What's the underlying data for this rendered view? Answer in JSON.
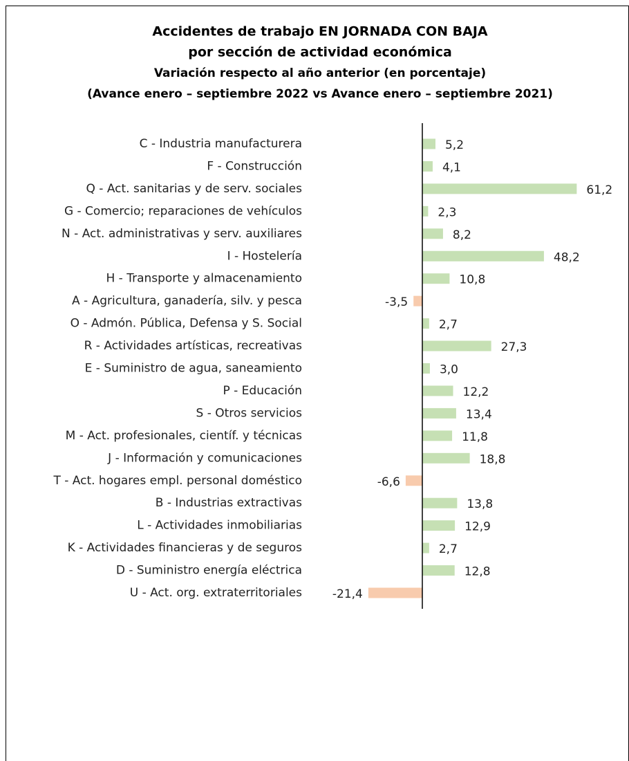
{
  "chart_data": {
    "type": "barh",
    "title": [
      "Accidentes de trabajo EN JORNADA CON BAJA",
      "por sección de actividad económica"
    ],
    "subtitle": [
      "Variación respecto al año anterior (en porcentaje)",
      "(Avance enero – septiembre 2022 vs Avance enero – septiembre 2021)"
    ],
    "categories": [
      "C - Industria manufacturera",
      "F - Construcción",
      "Q - Act. sanitarias y de serv. sociales",
      "G - Comercio; reparaciones de vehículos",
      "N - Act. administrativas y serv. auxiliares",
      "I - Hostelería",
      "H - Transporte y almacenamiento",
      "A - Agricultura, ganadería, silv. y pesca",
      "O - Admón. Pública, Defensa y S. Social",
      "R - Actividades artísticas, recreativas",
      "E - Suministro de agua, saneamiento",
      "P - Educación",
      "S - Otros servicios",
      "M - Act. profesionales, científ. y técnicas",
      "J - Información y comunicaciones",
      "T - Act. hogares empl. personal doméstico",
      "B - Industrias extractivas",
      "L - Actividades inmobiliarias",
      "K - Actividades financieras y de seguros",
      "D - Suministro energía eléctrica",
      "U - Act. org. extraterritoriales"
    ],
    "values": [
      5.2,
      4.1,
      61.2,
      2.3,
      8.2,
      48.2,
      10.8,
      -3.5,
      2.7,
      27.3,
      3.0,
      12.2,
      13.4,
      11.8,
      18.8,
      -6.6,
      13.8,
      12.9,
      2.7,
      12.8,
      -21.4
    ],
    "value_labels": [
      "5,2",
      "4,1",
      "61,2",
      "2,3",
      "8,2",
      "48,2",
      "10,8",
      "-3,5",
      "2,7",
      "27,3",
      "3,0",
      "12,2",
      "13,4",
      "11,8",
      "18,8",
      "-6,6",
      "13,8",
      "12,9",
      "2,7",
      "12,8",
      "-21,4"
    ],
    "positive_color": "#c6e0b4",
    "negative_color": "#f8cbad"
  }
}
